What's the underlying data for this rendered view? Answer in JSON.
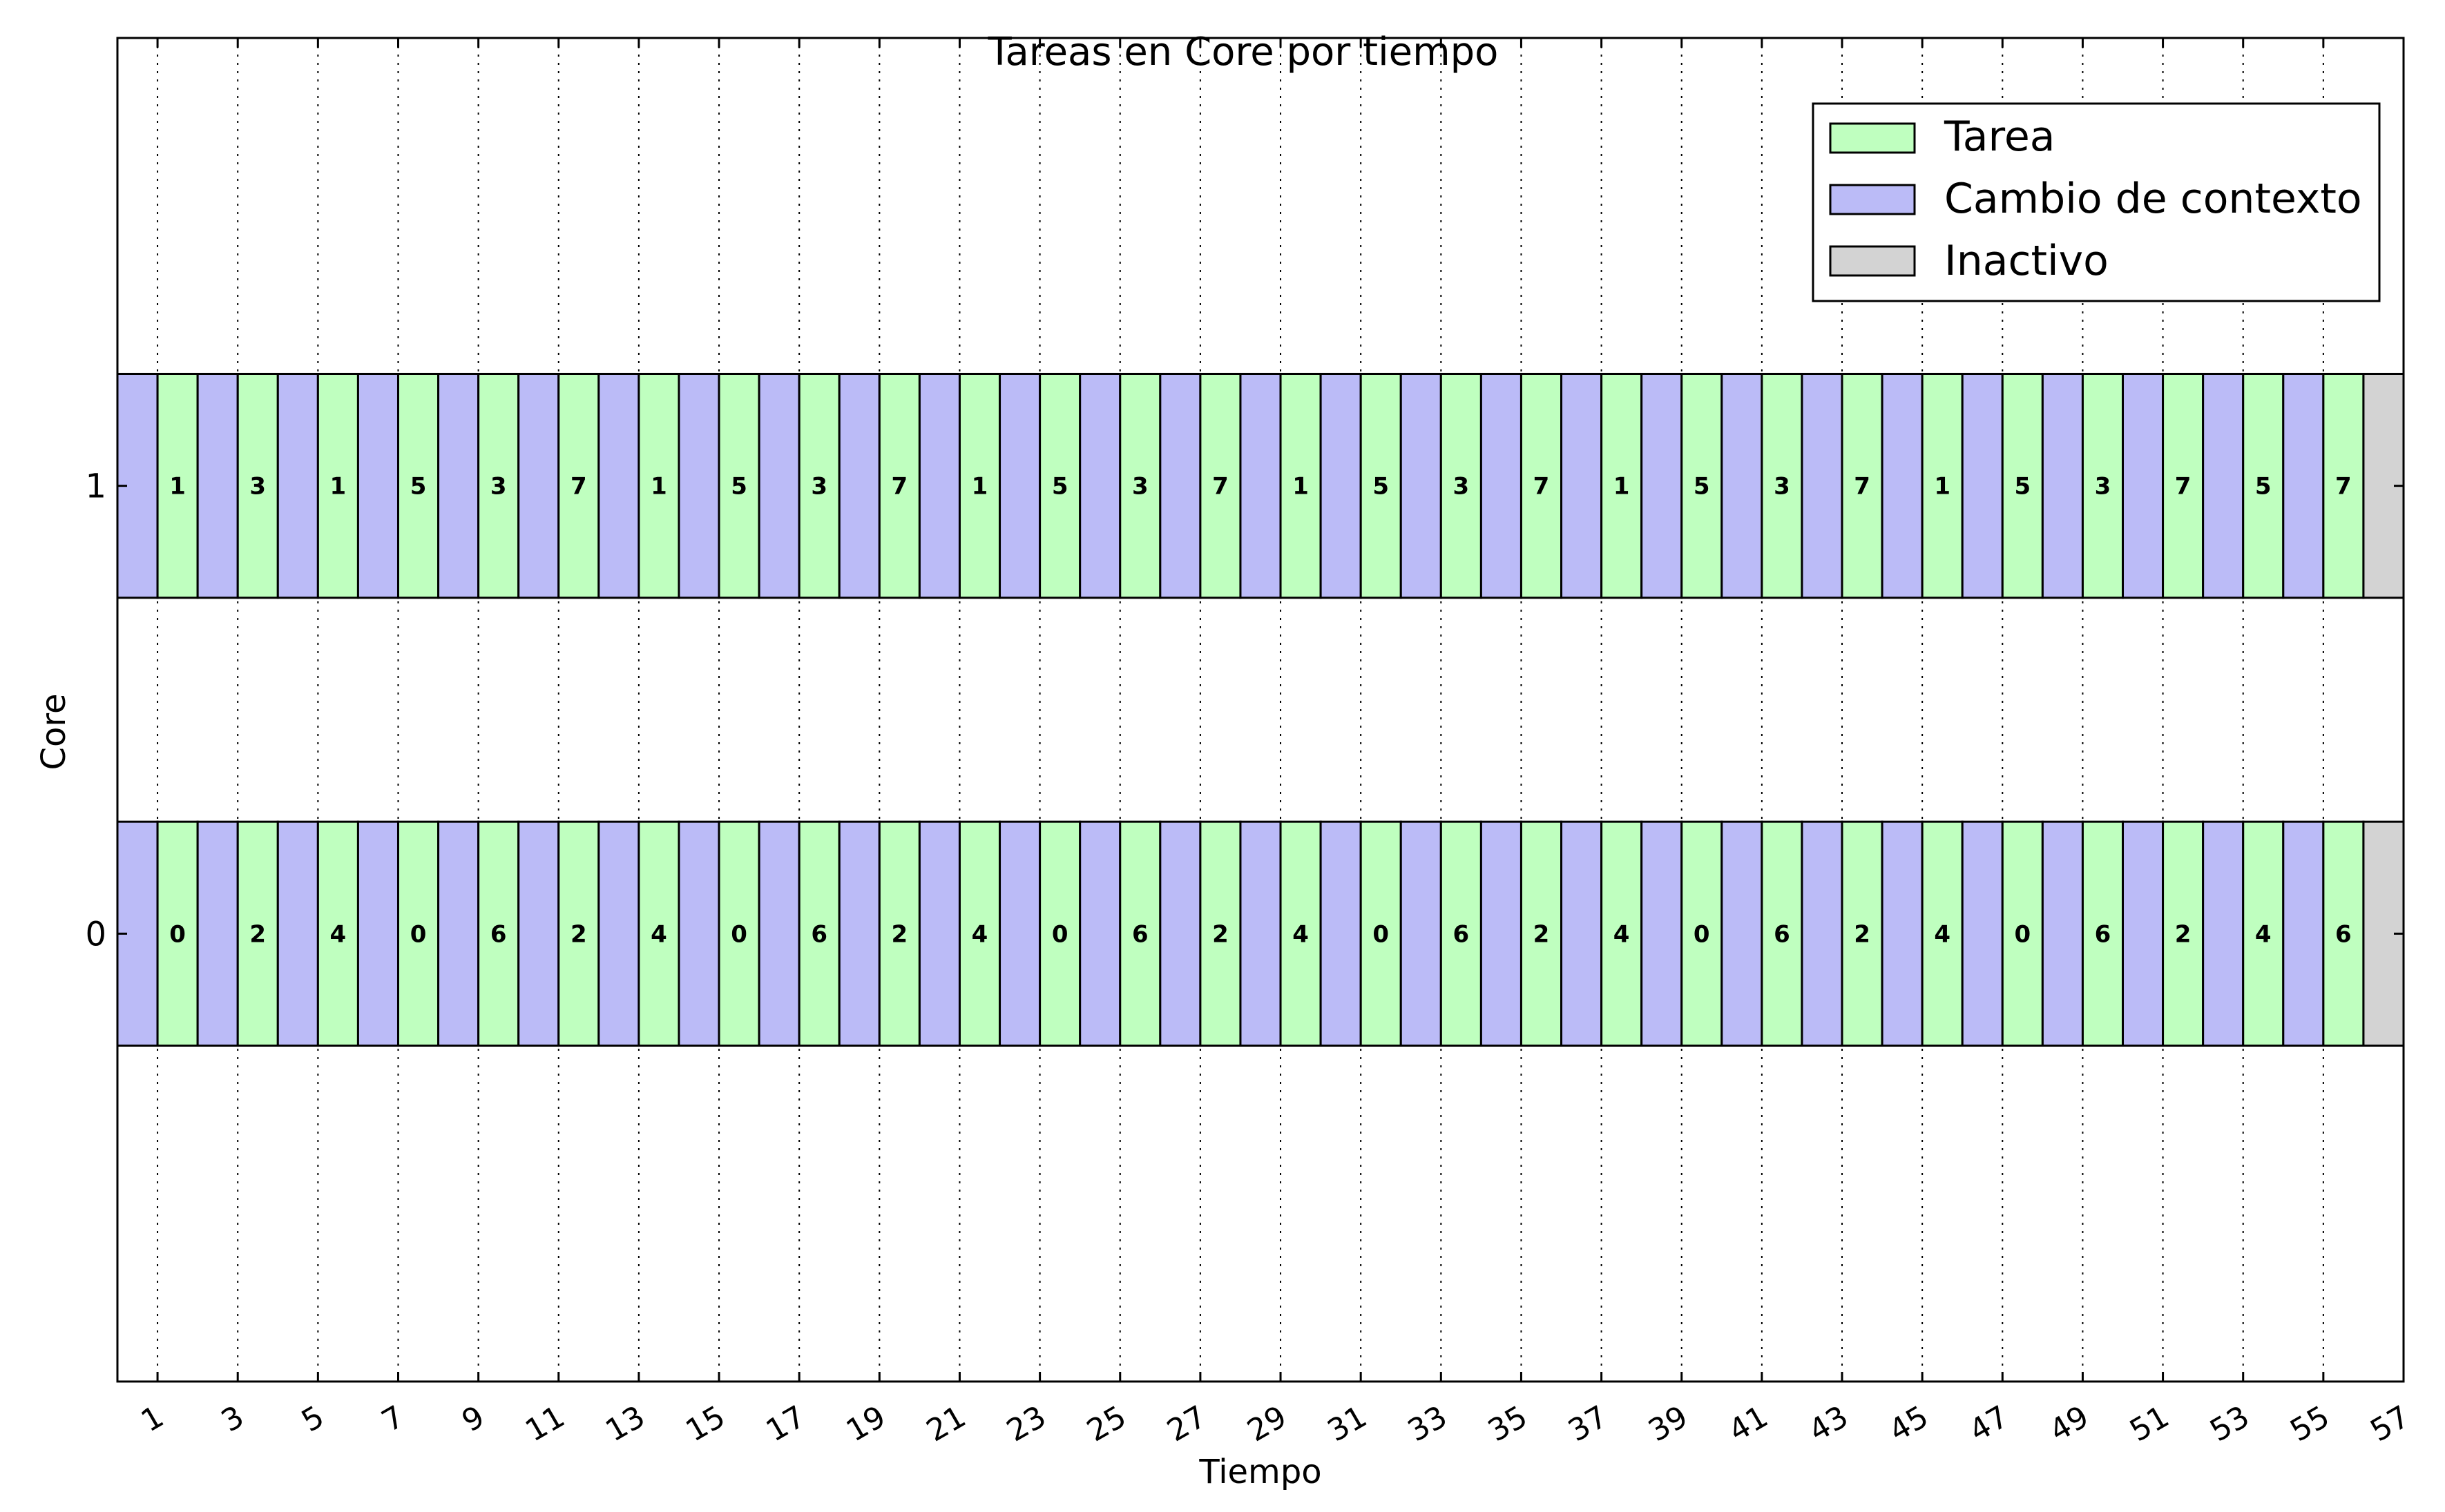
{
  "chart_data": {
    "type": "gantt",
    "title": "Tareas en Core por tiempo",
    "xlabel": "Tiempo",
    "ylabel": "Core",
    "xlim": [
      0,
      57
    ],
    "x_ticks": [
      1,
      3,
      5,
      7,
      9,
      11,
      13,
      15,
      17,
      19,
      21,
      23,
      25,
      27,
      29,
      31,
      33,
      35,
      37,
      39,
      41,
      43,
      45,
      47,
      49,
      51,
      53,
      55,
      57
    ],
    "y_ticks": [
      "0",
      "1"
    ],
    "grid": true,
    "legend_position": "top-right",
    "legend": [
      {
        "key": "task",
        "label": "Tarea",
        "color": "#bfffbf"
      },
      {
        "key": "switch",
        "label": "Cambio de contexto",
        "color": "#bbbbf7"
      },
      {
        "key": "idle",
        "label": "Inactivo",
        "color": "#d3d3d3"
      }
    ],
    "cores": [
      {
        "core": "1",
        "tasks": [
          "1",
          "3",
          "1",
          "5",
          "3",
          "7",
          "1",
          "5",
          "3",
          "7",
          "1",
          "5",
          "3",
          "7",
          "1",
          "5",
          "3",
          "7",
          "1",
          "5",
          "3",
          "7",
          "1",
          "5",
          "3",
          "7",
          "5",
          "7"
        ],
        "idle_from": 56,
        "idle_to": 57
      },
      {
        "core": "0",
        "tasks": [
          "0",
          "2",
          "4",
          "0",
          "6",
          "2",
          "4",
          "0",
          "6",
          "2",
          "4",
          "0",
          "6",
          "2",
          "4",
          "0",
          "6",
          "2",
          "4",
          "0",
          "6",
          "2",
          "4",
          "0",
          "6",
          "2",
          "4",
          "6"
        ],
        "idle_from": 56,
        "idle_to": 57
      }
    ],
    "pattern_note": "Each core alternates: context switch (1 unit) then task (1 unit), starting at time 0"
  }
}
